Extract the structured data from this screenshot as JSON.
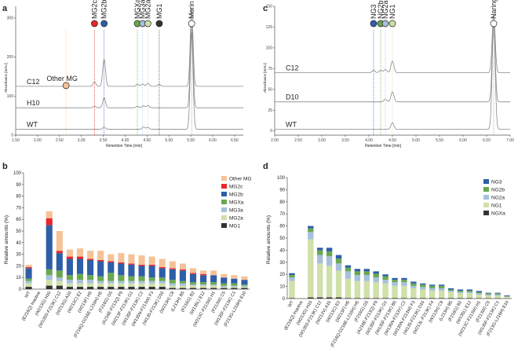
{
  "chart_data": [
    {
      "type": "line",
      "panel_label": "a",
      "ylabel": "Absorbance [mAU]",
      "xlabel": "Retention Time [min]",
      "xlim": [
        1.5,
        6.7
      ],
      "ylim": [
        0,
        330
      ],
      "x_ticks": [
        "1.50",
        "2.00",
        "2.50",
        "3.00",
        "3.50",
        "4.00",
        "4.50",
        "5.00",
        "5.50",
        "6.00",
        "6.50"
      ],
      "y_ticks": [
        "300",
        "200",
        "100",
        "0"
      ],
      "tick_values": [
        300,
        200,
        100,
        0
      ],
      "traces": [
        {
          "name": "C12",
          "baseline": 125,
          "peaks": [
            [
              2.65,
              4
            ],
            [
              3.3,
              12
            ],
            [
              3.52,
              70
            ],
            [
              4.28,
              5
            ],
            [
              4.4,
              6
            ],
            [
              4.52,
              8
            ],
            [
              4.78,
              5
            ],
            [
              5.52,
              200
            ]
          ]
        },
        {
          "name": "H10",
          "baseline": 70,
          "peaks": [
            [
              3.3,
              4
            ],
            [
              3.52,
              26
            ],
            [
              4.28,
              4
            ],
            [
              4.42,
              5
            ],
            [
              4.52,
              6
            ],
            [
              5.52,
              220
            ]
          ]
        },
        {
          "name": "WT",
          "baseline": 15,
          "peaks": [
            [
              3.52,
              6
            ],
            [
              4.42,
              6
            ],
            [
              4.52,
              5
            ],
            [
              5.52,
              250
            ]
          ]
        }
      ],
      "markers": [
        {
          "label": "Other MG",
          "x": 2.65,
          "color": "#f5c297"
        },
        {
          "label": "MG2c",
          "x": 3.3,
          "color": "#e8262b"
        },
        {
          "label": "MG2b",
          "x": 3.52,
          "color": "#2e5ea8"
        },
        {
          "label": "MGXa",
          "x": 4.28,
          "color": "#6aa84f"
        },
        {
          "label": "MG3a",
          "x": 4.4,
          "color": "#a6c0dc"
        },
        {
          "label": "MG2a",
          "x": 4.52,
          "color": "#cfe0a8"
        },
        {
          "label": "MG1",
          "x": 4.78,
          "color": "#333333"
        },
        {
          "label": "Morin",
          "x": 5.52,
          "color": "#ffffff"
        }
      ]
    },
    {
      "type": "line",
      "panel_label": "c",
      "ylabel": "Absorbance [mAU]",
      "xlabel": "Retention Time [min]",
      "xlim": [
        2.0,
        7.0
      ],
      "ylim": [
        -5,
        150
      ],
      "x_ticks": [
        "2.00",
        "2.50",
        "3.00",
        "3.50",
        "4.00",
        "4.50",
        "5.00",
        "5.50",
        "6.00",
        "6.50",
        "7.00"
      ],
      "y_ticks": [
        "150",
        "125",
        "100",
        "75",
        "50",
        "25",
        "0"
      ],
      "tick_values": [
        150,
        125,
        100,
        75,
        50,
        25,
        0
      ],
      "traces": [
        {
          "name": "C12",
          "baseline": 70,
          "peaks": [
            [
              4.1,
              3
            ],
            [
              4.25,
              3
            ],
            [
              4.35,
              4
            ],
            [
              4.5,
              14
            ],
            [
              6.65,
              70
            ]
          ]
        },
        {
          "name": "D10",
          "baseline": 35,
          "peaks": [
            [
              4.35,
              3
            ],
            [
              4.5,
              12
            ],
            [
              6.65,
              95
            ]
          ]
        },
        {
          "name": "WT",
          "baseline": 2,
          "peaks": [
            [
              4.5,
              8
            ],
            [
              6.65,
              130
            ]
          ]
        }
      ],
      "markers": [
        {
          "label": "NG3",
          "x": 4.1,
          "color": "#2e5ea8"
        },
        {
          "label": "NG2b",
          "x": 4.25,
          "color": "#6aa84f"
        },
        {
          "label": "NG2a",
          "x": 4.35,
          "color": "#a6c0dc"
        },
        {
          "label": "NG1",
          "x": 4.5,
          "color": "#cfe0a8"
        },
        {
          "label": "Naringenin",
          "x": 6.65,
          "color": "#ffffff"
        }
      ]
    },
    {
      "type": "bar",
      "stacked": true,
      "panel_label": "b",
      "ylabel": "Relative amounts (%)",
      "ylim": [
        0,
        100
      ],
      "y_ticks": [
        0,
        10,
        20,
        30,
        40,
        50,
        60,
        70,
        80,
        90,
        100
      ],
      "categories": [
        "WT",
        "(E216Q) Inactive",
        "(W213G) H10",
        "(W135S-F213K) C12",
        "(W213G) A10",
        "(W213C) E2",
        "(W213F) H5",
        "(F216Q-D216E-L216H) H5",
        "(F216G) G5",
        "(A216E-F213Q) F9",
        "(W213F-F213K) G1",
        "(W135F-F213K) C2",
        "(W135N-F213W) F3",
        "(W135-F213K) D10",
        "(W213H) C8",
        "(L213H) B5",
        "(F216G) B2",
        "(W135L) E12",
        "(W213C-F213W) H1",
        "(F213W) C5",
        "(W135F-F213K) C1",
        "(F213G-L216H) E10"
      ],
      "series": [
        {
          "name": "MG1",
          "color": "#333333",
          "values": [
            2,
            0,
            3,
            3,
            2,
            2,
            2,
            2,
            2,
            2,
            2,
            2,
            2,
            2,
            1,
            1,
            1,
            1,
            1,
            1,
            1,
            1
          ]
        },
        {
          "name": "MG2a",
          "color": "#cfe0a8",
          "values": [
            3,
            0,
            5,
            4,
            3,
            3,
            3,
            3,
            3,
            3,
            3,
            3,
            3,
            3,
            2,
            2,
            2,
            2,
            2,
            1,
            1,
            1
          ]
        },
        {
          "name": "MG3a",
          "color": "#a6c0dc",
          "values": [
            2,
            0,
            4,
            3,
            3,
            3,
            3,
            2,
            2,
            2,
            2,
            2,
            2,
            2,
            2,
            2,
            1,
            1,
            1,
            1,
            1,
            1
          ]
        },
        {
          "name": "MGXa",
          "color": "#6aa84f",
          "values": [
            2,
            0,
            5,
            6,
            4,
            5,
            4,
            4,
            7,
            5,
            4,
            4,
            3,
            3,
            3,
            2,
            2,
            2,
            2,
            2,
            2,
            1
          ]
        },
        {
          "name": "MG2b",
          "color": "#2e5ea8",
          "values": [
            9,
            0,
            38,
            15,
            14,
            13,
            13,
            13,
            9,
            10,
            10,
            9,
            10,
            8,
            9,
            9,
            7,
            6,
            6,
            5,
            4,
            4
          ]
        },
        {
          "name": "MG2c",
          "color": "#e8262b",
          "values": [
            1,
            0,
            6,
            2,
            2,
            2,
            1,
            1,
            1,
            1,
            1,
            1,
            1,
            1,
            1,
            1,
            1,
            1,
            0,
            0,
            0,
            0
          ]
        },
        {
          "name": "Other MG",
          "color": "#f5c297",
          "values": [
            2,
            0,
            6,
            17,
            6,
            7,
            7,
            8,
            6,
            8,
            8,
            8,
            7,
            7,
            6,
            5,
            4,
            3,
            4,
            3,
            3,
            3
          ]
        }
      ]
    },
    {
      "type": "bar",
      "stacked": true,
      "panel_label": "d",
      "ylabel": "Relative amounts (%)",
      "ylim": [
        0,
        100
      ],
      "y_ticks": [
        0,
        10,
        20,
        30,
        40,
        50,
        60,
        70,
        80,
        90,
        100
      ],
      "categories": [
        "WT",
        "(E216Q) Inactive",
        "(W213G) H10",
        "(W135S-F213K) C12",
        "(W213V) A10",
        "(W213C) E2",
        "(W213F) H5",
        "(F216Q-D216E-L216H) H5",
        "(F216G) G5",
        "(A216E-F213Q) F9",
        "(W135F-F213K) G1",
        "(W135F-F213K) B5",
        "(W135N-F213Y) C2",
        "(W135N-F213W) F3",
        "(W135-F213K) D10",
        "(W213L-F213K) F4",
        "(W213H) C8",
        "(L213H) B5",
        "(F216G) B2",
        "(W135L) E12",
        "(W213C-F213W) H1",
        "(F213W) C5",
        "(W135F-F213K) C1",
        "(F213G-L216H) E10"
      ],
      "series": [
        {
          "name": "NGXa",
          "color": "#333333",
          "values": [
            0.5,
            0,
            1,
            1,
            1,
            1,
            0.5,
            0.5,
            0.5,
            0.5,
            0.5,
            0.5,
            0.5,
            0.5,
            0.5,
            0.5,
            0.5,
            0.5,
            0.5,
            0.5,
            0.3,
            0.3,
            0.3,
            0.2
          ]
        },
        {
          "name": "NG1",
          "color": "#cfe0a8",
          "values": [
            14,
            0,
            48,
            28,
            26,
            22,
            16,
            14,
            14,
            13,
            12,
            10,
            10,
            8,
            7,
            6,
            6,
            5,
            4,
            4,
            3,
            2,
            2,
            1
          ]
        },
        {
          "name": "NG2a",
          "color": "#a6c0dc",
          "values": [
            3,
            0,
            6,
            7,
            8,
            6,
            6,
            5,
            5,
            4,
            3,
            3,
            3,
            2,
            2,
            2,
            2,
            1,
            1,
            1,
            1,
            1,
            1,
            0.5
          ]
        },
        {
          "name": "NG2b",
          "color": "#6aa84f",
          "values": [
            2,
            0,
            3,
            4,
            4,
            4,
            3,
            3,
            3,
            3,
            3,
            2,
            2,
            2,
            2,
            2,
            2,
            1,
            1,
            1,
            1,
            1,
            1,
            0.5
          ]
        },
        {
          "name": "NG3",
          "color": "#2e5ea8",
          "values": [
            1.5,
            0,
            2,
            2,
            3,
            3,
            2,
            2,
            2,
            2,
            1.5,
            1.5,
            1.5,
            1.5,
            1,
            1,
            1,
            1,
            1,
            1,
            1,
            0.5,
            0.5,
            0.5
          ]
        }
      ]
    }
  ]
}
